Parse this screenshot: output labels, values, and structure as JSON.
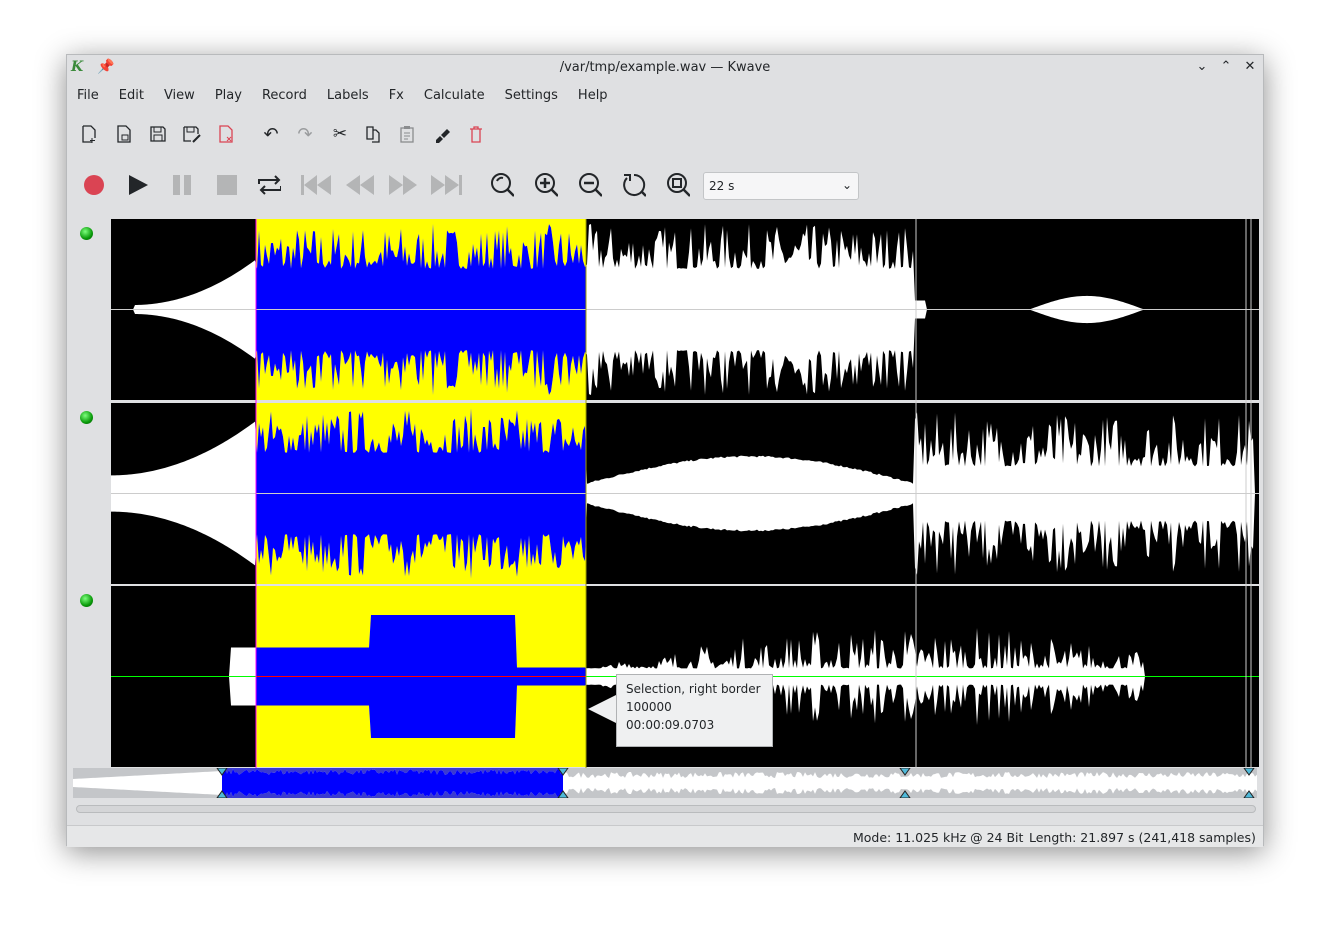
{
  "window": {
    "title": "/var/tmp/example.wav — Kwave",
    "app_icon": "kwave-logo",
    "pin_icon": "pin-icon"
  },
  "menu": [
    "File",
    "Edit",
    "View",
    "Play",
    "Record",
    "Labels",
    "Fx",
    "Calculate",
    "Settings",
    "Help"
  ],
  "toolbar_edit": [
    "new-file-icon",
    "open-file-icon",
    "save-icon",
    "save-as-icon",
    "close-file-icon",
    "undo-icon",
    "redo-icon",
    "cut-icon",
    "copy-icon",
    "paste-icon",
    "erase-icon",
    "delete-icon"
  ],
  "toolbar_transport": [
    "record-icon",
    "play-icon",
    "pause-icon",
    "stop-icon",
    "loop-icon",
    "first-icon",
    "rewind-icon",
    "forward-icon",
    "last-icon",
    "zoom-selection-icon",
    "zoom-in-icon",
    "zoom-out-icon",
    "zoom-original-icon",
    "zoom-all-icon"
  ],
  "zoom": {
    "value": "22 s"
  },
  "colors": {
    "selection": "#ffff00",
    "selected_wave": "#0000ff",
    "wave": "#ffffff",
    "background": "#000000",
    "record": "#da4453",
    "led": "#11b011"
  },
  "tracks": [
    {
      "enabled": true
    },
    {
      "enabled": true
    },
    {
      "enabled": true
    }
  ],
  "selection": {
    "start_fraction": 0.126,
    "end_fraction": 0.414
  },
  "tooltip": {
    "line1": "Selection, right border",
    "line2": "100000",
    "line3": "00:00:09.0703"
  },
  "status": {
    "mode": "Mode: 11.025 kHz @ 24 Bit",
    "length": "Length: 21.897 s (241,418 samples)"
  }
}
